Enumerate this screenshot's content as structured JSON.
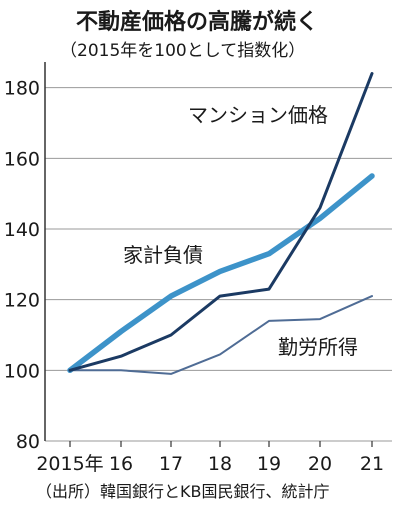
{
  "title": "不動産価格の高騰が続く",
  "subtitle": "（2015年を100として指数化）",
  "source": "（出所）韓国銀行とKB国民銀行、統計庁",
  "chart_data": {
    "type": "line",
    "categories": [
      "2015年",
      "16",
      "17",
      "18",
      "19",
      "20",
      "21"
    ],
    "ylim": [
      80,
      185
    ],
    "yticks": [
      80,
      100,
      120,
      140,
      160,
      180
    ],
    "grid": true,
    "series": [
      {
        "name": "マンション価格",
        "color": "#1b3a63",
        "values": [
          100,
          104,
          110,
          121,
          123,
          146,
          184
        ]
      },
      {
        "name": "家計負債",
        "color": "#3d93c9",
        "values": [
          100,
          111,
          121,
          128,
          133,
          143,
          155
        ]
      },
      {
        "name": "勤労所得",
        "color": "#4f6c95",
        "values": [
          100,
          100,
          99,
          104.5,
          114,
          114.5,
          121
        ]
      }
    ]
  }
}
